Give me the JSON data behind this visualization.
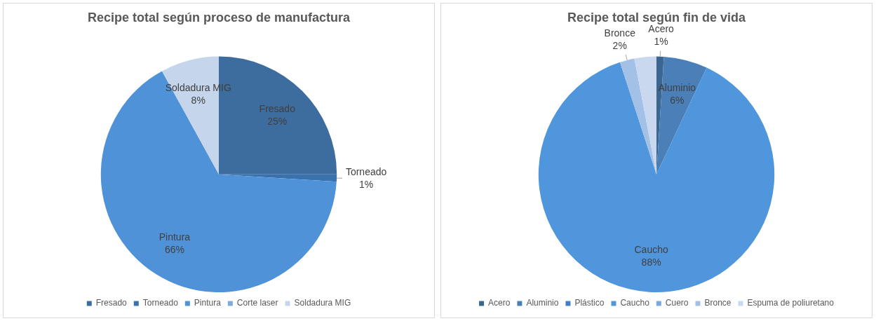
{
  "chart_data": [
    {
      "type": "pie",
      "title": "Recipe total según proceso de manufactura",
      "categories": [
        "Fresado",
        "Torneado",
        "Pintura",
        "Corte laser",
        "Soldadura MIG"
      ],
      "values": [
        25,
        1,
        66,
        0,
        8
      ],
      "colors": [
        "#3d6c9e",
        "#3a72b0",
        "#4f92d8",
        "#7eaadf",
        "#c5d6ec"
      ],
      "value_labels": [
        "25%",
        "1%",
        "66%",
        null,
        "8%"
      ],
      "legend": "bottom"
    },
    {
      "type": "pie",
      "title": "Recipe total según fin de vida",
      "categories": [
        "Acero",
        "Aluminio",
        "Plástico",
        "Caucho",
        "Cuero",
        "Bronce",
        "Espuma de poliuretano"
      ],
      "values": [
        1,
        6,
        0,
        88,
        0,
        2,
        3
      ],
      "colors": [
        "#3a6690",
        "#4a7fb8",
        "#3e7fc8",
        "#5096dc",
        "#7aa9df",
        "#a3c1e6",
        "#c9d8ee"
      ],
      "value_labels": [
        "1%",
        "6%",
        null,
        "88%",
        null,
        "2%",
        null
      ],
      "legend": "bottom"
    }
  ]
}
